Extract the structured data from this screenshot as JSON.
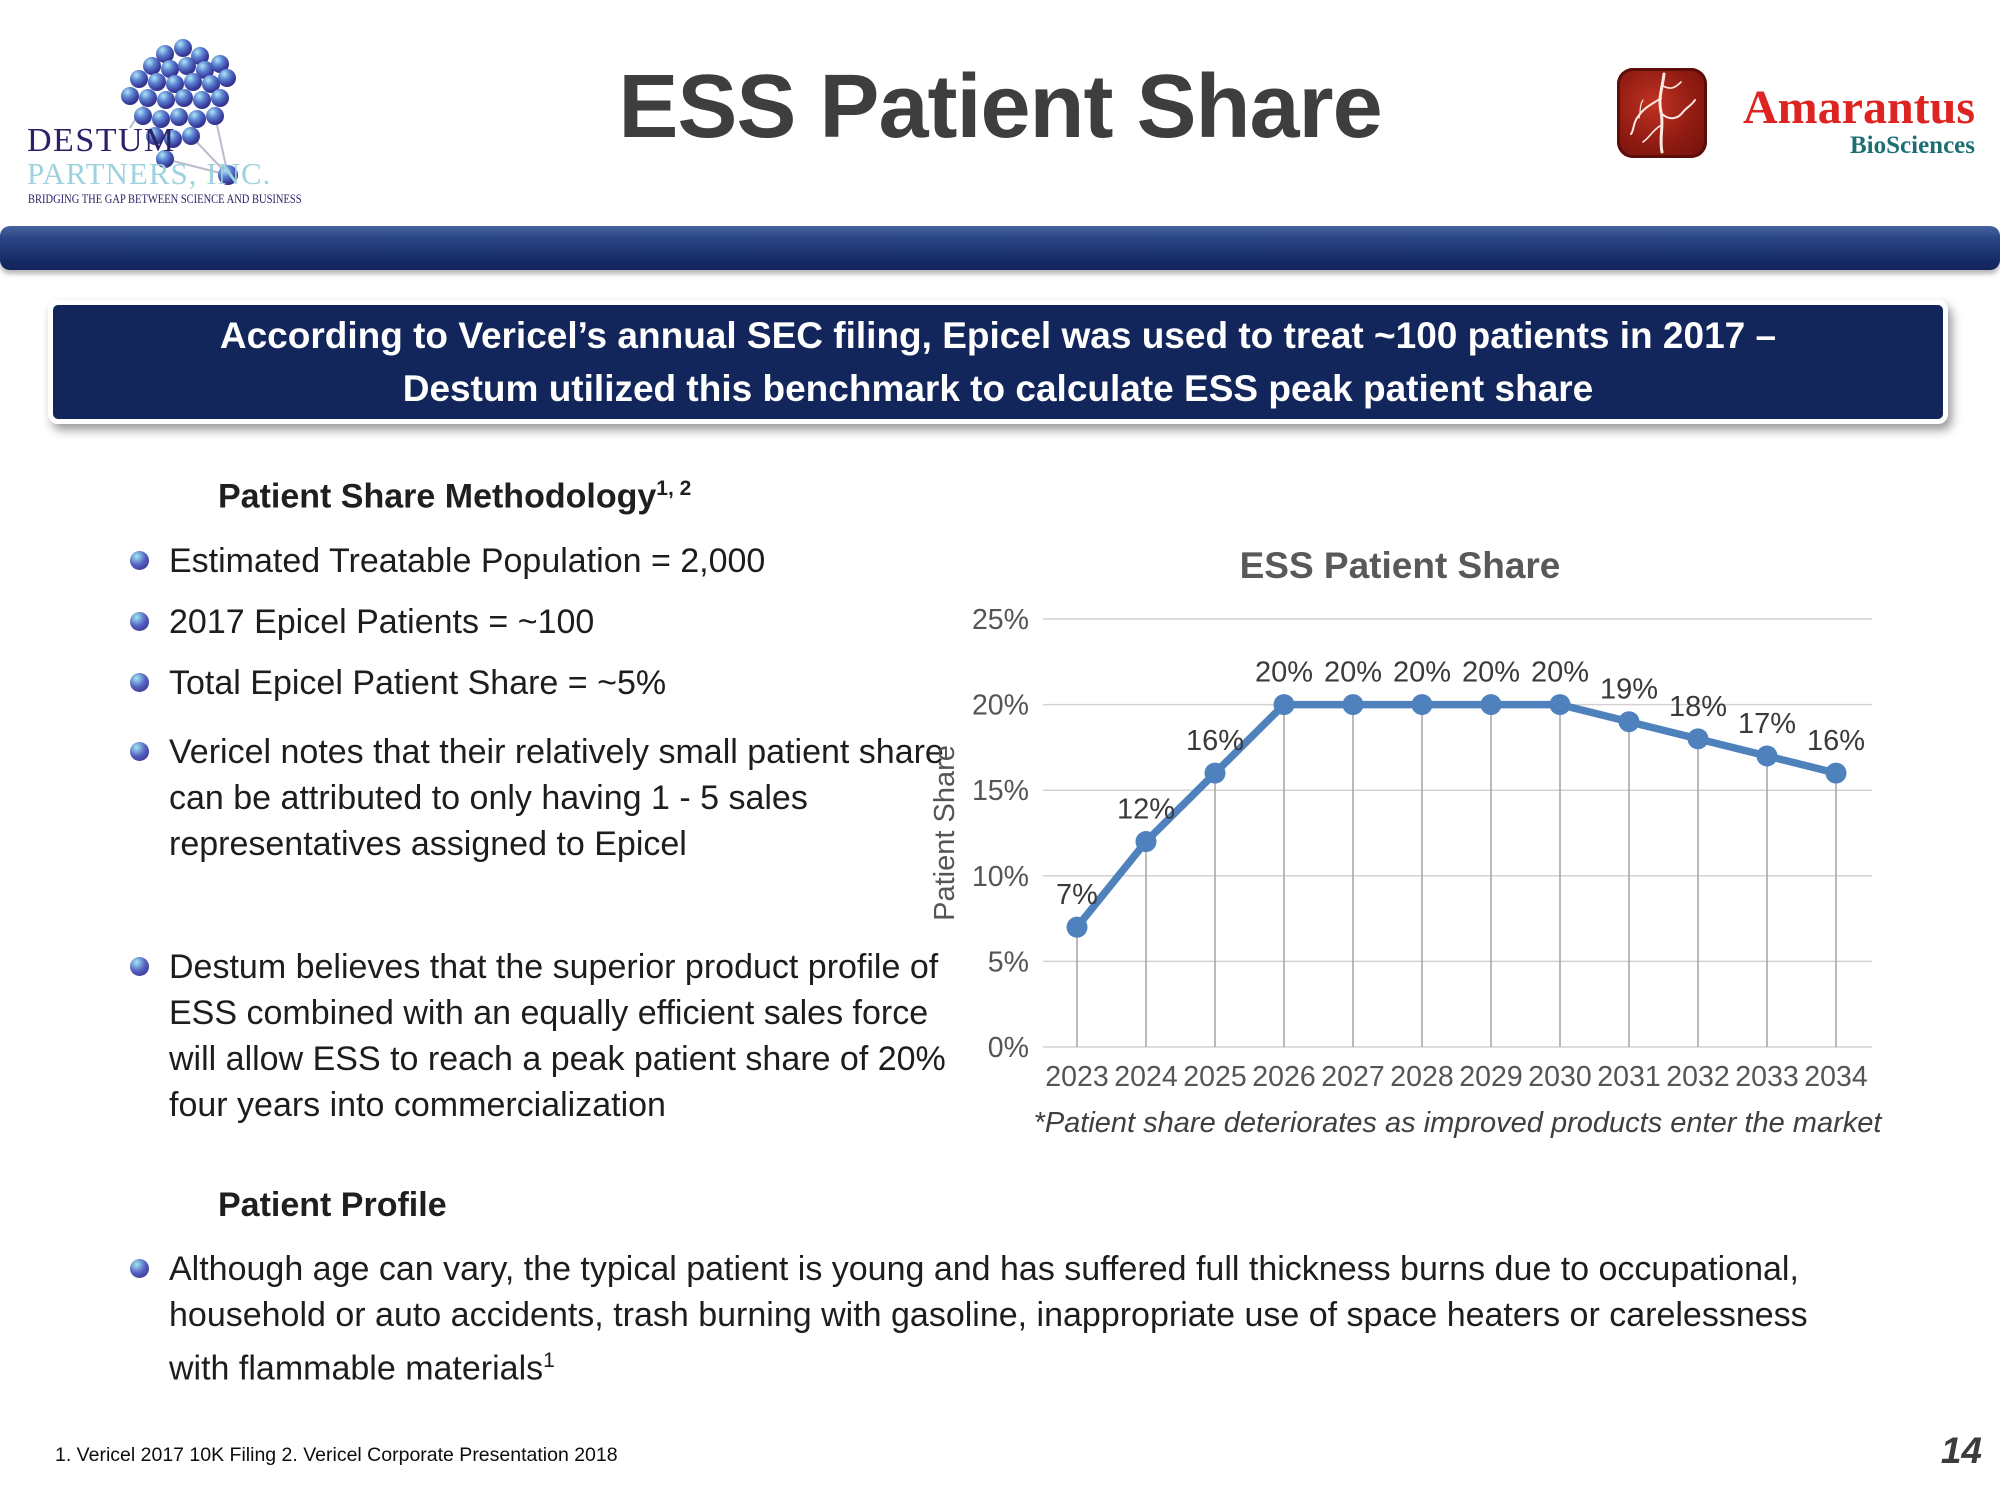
{
  "slide": {
    "title": "ESS Patient Share",
    "page_number": "14",
    "footer": "1. Vericel 2017 10K Filing 2. Vericel Corporate Presentation 2018"
  },
  "logos": {
    "destum": {
      "name": "DESTUM",
      "sub": "PARTNERS, INC.",
      "tagline": "BRIDGING THE GAP BETWEEN SCIENCE AND BUSINESS"
    },
    "amarantus": {
      "name": "Amarantus",
      "sub": "BioSciences"
    }
  },
  "banner": {
    "line1": "According to Vericel’s annual SEC filing, Epicel was used to treat ~100 patients in 2017 –",
    "line2": "Destum utilized this benchmark to calculate ESS peak patient share"
  },
  "methodology": {
    "heading": "Patient Share Methodology",
    "heading_sup": "1, 2",
    "bullets": [
      "Estimated Treatable Population = 2,000",
      "2017 Epicel Patients = ~100",
      "Total Epicel Patient Share = ~5%",
      "Vericel notes that their relatively small patient share can be attributed to only having 1 - 5 sales representatives assigned to Epicel",
      "Destum believes that the superior product profile of ESS combined with an equally efficient sales force will allow ESS to reach a peak patient share of 20% four years into commercialization"
    ]
  },
  "profile": {
    "heading": "Patient Profile",
    "bullet": "Although age can vary, the typical patient is young and has suffered full thickness burns due to occupational, household or auto accidents, trash burning with gasoline, inappropriate use of space heaters or carelessness with flammable materials",
    "bullet_sup": "1"
  },
  "colors": {
    "accent_blue": "#4F81BD",
    "banner_navy": "#13265c",
    "chart_text_gray": "#595959",
    "gridline_gray": "#d2d2d2",
    "dropline_gray": "#a9a9a9",
    "brand_red": "#dd2420",
    "brand_teal": "#1e6f74"
  },
  "chart_data": {
    "type": "line",
    "title": "ESS Patient Share",
    "ylabel": "Patient Share",
    "xlabel": "",
    "categories": [
      "2023",
      "2024",
      "2025",
      "2026",
      "2027",
      "2028",
      "2029",
      "2030",
      "2031",
      "2032",
      "2033",
      "2034"
    ],
    "series": [
      {
        "name": "ESS Patient Share",
        "color": "#4F81BD",
        "values": [
          7,
          12,
          16,
          20,
          20,
          20,
          20,
          20,
          19,
          18,
          17,
          16
        ]
      }
    ],
    "data_label_format": "percent",
    "ylim": [
      0,
      25
    ],
    "ytick_step": 5,
    "grid": true,
    "legend_position": "none",
    "annotation": "*Patient share deteriorates as improved products enter the market"
  }
}
